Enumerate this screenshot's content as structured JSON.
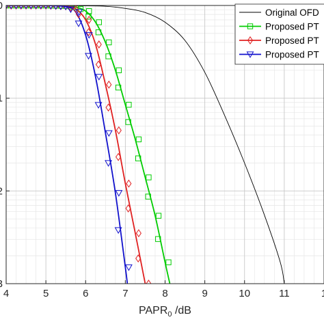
{
  "chart_data": {
    "type": "line",
    "xlabel": "PAPR",
    "xlabel_sub": "0",
    "xlabel_unit": " /dB",
    "ylabel": "",
    "xlim": [
      4,
      12
    ],
    "ylim": [
      0.001,
      1
    ],
    "y_scale": "log",
    "grid": true,
    "x_ticks": [
      "4",
      "5",
      "6",
      "7",
      "8",
      "9",
      "10",
      "11",
      "1"
    ],
    "y_tick_labels": [
      "0",
      "1",
      "2",
      "3"
    ],
    "legend_position": "top-right",
    "series": [
      {
        "name": "Original OFD",
        "color": "#000000",
        "marker": "none",
        "x": [
          4,
          6,
          6.5,
          7,
          7.5,
          8,
          8.5,
          9,
          9.5,
          10,
          10.5,
          10.9,
          11.0
        ],
        "y": [
          1,
          0.99,
          0.98,
          0.93,
          0.84,
          0.66,
          0.42,
          0.19,
          0.065,
          0.02,
          0.0055,
          0.0017,
          0.001
        ]
      },
      {
        "name": "Proposed PT",
        "color": "#00cc00",
        "marker": "square",
        "x": [
          4,
          5,
          5.5,
          5.75,
          6,
          6.25,
          6.5,
          6.75,
          7,
          7.25,
          7.5,
          7.75,
          8,
          8.12
        ],
        "y": [
          1,
          1,
          0.99,
          0.96,
          0.87,
          0.66,
          0.4,
          0.2,
          0.085,
          0.036,
          0.014,
          0.0054,
          0.0017,
          0.001
        ]
      },
      {
        "name": "Proposed PT",
        "color": "#e02020",
        "marker": "diamond",
        "x": [
          4,
          5,
          5.5,
          5.75,
          6,
          6.25,
          6.5,
          6.75,
          7,
          7.25,
          7.5
        ],
        "y": [
          1,
          1,
          0.98,
          0.92,
          0.7,
          0.38,
          0.14,
          0.045,
          0.012,
          0.0035,
          0.001
        ]
      },
      {
        "name": "Proposed PT",
        "color": "#1010cc",
        "marker": "triangle-down",
        "x": [
          4,
          5,
          5.5,
          5.75,
          6,
          6.25,
          6.5,
          6.75,
          7,
          7.05
        ],
        "y": [
          1,
          1,
          0.97,
          0.85,
          0.48,
          0.17,
          0.042,
          0.0095,
          0.0015,
          0.001
        ]
      }
    ]
  }
}
